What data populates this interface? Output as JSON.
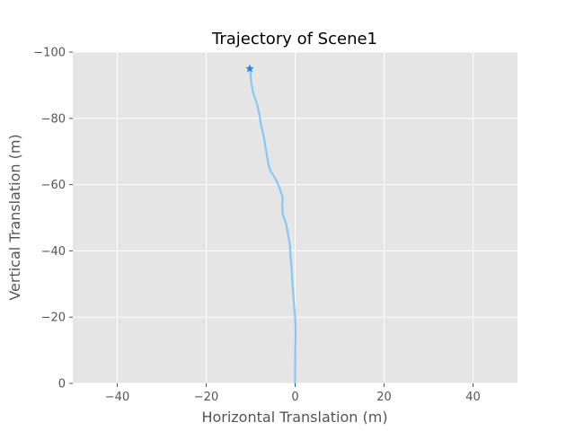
{
  "chart_data": {
    "type": "line",
    "title": "Trajectory of Scene1",
    "xlabel": "Horizontal Translation (m)",
    "ylabel": "Vertical Translation (m)",
    "xlim": [
      -50,
      50
    ],
    "ylim": [
      0,
      -100
    ],
    "y_inverted": true,
    "grid": true,
    "background_color": "#e5e5e5",
    "grid_color": "#ffffff",
    "line_color": "#85c8f5",
    "marker_color": "#1e88e5",
    "x_ticks": [
      {
        "value": -40,
        "label": "−40"
      },
      {
        "value": -20,
        "label": "−20"
      },
      {
        "value": 0,
        "label": "0"
      },
      {
        "value": 20,
        "label": "20"
      },
      {
        "value": 40,
        "label": "40"
      }
    ],
    "y_ticks": [
      {
        "value": 0,
        "label": "0"
      },
      {
        "value": -20,
        "label": "−20"
      },
      {
        "value": -40,
        "label": "−40"
      },
      {
        "value": -60,
        "label": "−60"
      },
      {
        "value": -80,
        "label": "−80"
      },
      {
        "value": -100,
        "label": "−100"
      }
    ],
    "series": [
      {
        "x": [
          0,
          0,
          0.05,
          0.1,
          0.05,
          -0.3,
          -0.6,
          -0.8,
          -1.0,
          -1.2,
          -1.6,
          -2.0,
          -2.5,
          -2.8,
          -2.9,
          -2.8,
          -3.0,
          -3.5,
          -4.5,
          -5.5,
          -6.0,
          -6.5,
          -7.0,
          -7.5,
          -7.8,
          -8.0,
          -8.2,
          -8.5,
          -9.0,
          -9.5,
          -9.9,
          -10.0,
          -10.2
        ],
        "y": [
          0,
          -5,
          -10,
          -15,
          -19,
          -25,
          -30,
          -35,
          -38,
          -42,
          -45,
          -48,
          -50,
          -51,
          -54,
          -56,
          -57,
          -59,
          -62,
          -64,
          -66,
          -70,
          -74,
          -77,
          -79,
          -81,
          -82,
          -84,
          -86,
          -88,
          -91,
          -93,
          -95
        ]
      }
    ],
    "end_marker": {
      "x": -10.2,
      "y": -95,
      "symbol": "star"
    }
  }
}
